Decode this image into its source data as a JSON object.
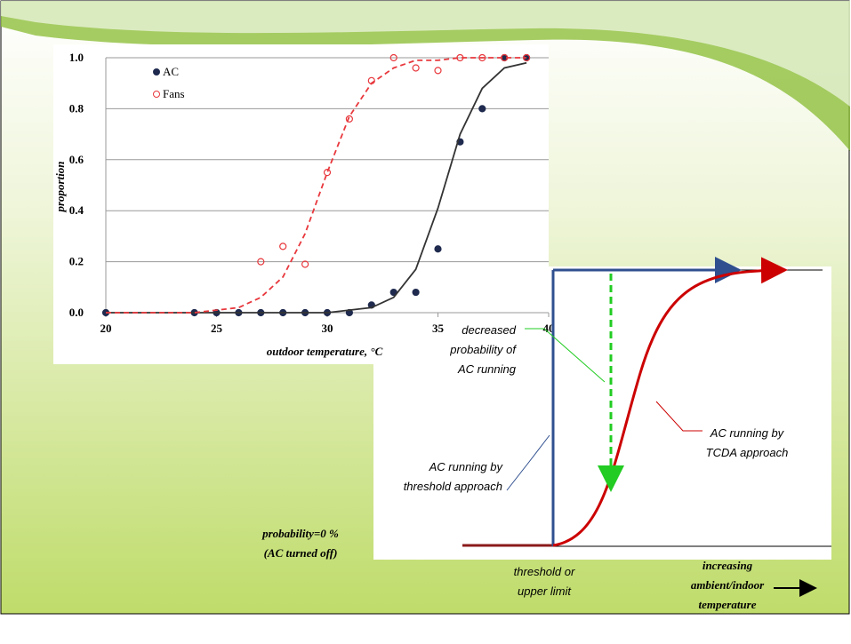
{
  "chart_data": {
    "type": "scatter",
    "xlabel": "outdoor temperature, °C",
    "ylabel": "proportion",
    "xlim": [
      20,
      40
    ],
    "ylim": [
      0,
      1.0
    ],
    "xticks": [
      20,
      25,
      30,
      35,
      40
    ],
    "yticks": [
      {
        "value": 0,
        "label": "0.0"
      },
      {
        "value": 0.2,
        "label": "0.2"
      },
      {
        "value": 0.4,
        "label": "0.4"
      },
      {
        "value": 0.6,
        "label": "0.6"
      },
      {
        "value": 0.8,
        "label": "0.8"
      },
      {
        "value": 1.0,
        "label": "1.0"
      }
    ],
    "grid": true,
    "legend": "upper left",
    "series": [
      {
        "name": "AC",
        "color": "#1f2a4e",
        "marker": "filled",
        "x": [
          20,
          24,
          25,
          26,
          27,
          28,
          29,
          30,
          31,
          32,
          33,
          34,
          35,
          36,
          37,
          38,
          39
        ],
        "values": [
          0,
          0,
          0,
          0,
          0,
          0,
          0,
          0,
          0,
          0.03,
          0.08,
          0.08,
          0.25,
          0.67,
          0.8,
          1.0,
          1.0
        ]
      },
      {
        "name": "Fans",
        "color": "#e8383d",
        "marker": "open",
        "x": [
          27,
          28,
          29,
          30,
          31,
          32,
          33,
          34,
          35,
          36,
          37,
          38,
          39
        ],
        "values": [
          0.2,
          0.26,
          0.19,
          0.55,
          0.76,
          0.91,
          1.0,
          0.96,
          0.95,
          1.0,
          1.0,
          1.0,
          1.0
        ]
      },
      {
        "color": "#333333",
        "line": "solid",
        "x": [
          20,
          21,
          22,
          23,
          24,
          25,
          26,
          27,
          28,
          29,
          30,
          31,
          32,
          33,
          34,
          35,
          36,
          37,
          38,
          39
        ],
        "values": [
          0,
          0,
          0,
          0,
          0,
          0,
          0,
          0,
          0,
          0,
          0,
          0.01,
          0.02,
          0.06,
          0.17,
          0.41,
          0.7,
          0.88,
          0.96,
          0.98
        ]
      },
      {
        "color": "#e8383d",
        "line": "dashed",
        "x": [
          20,
          21,
          22,
          23,
          24,
          25,
          26,
          27,
          28,
          29,
          30,
          31,
          32,
          33,
          34,
          35,
          36,
          37,
          38,
          39
        ],
        "values": [
          0,
          0,
          0,
          0,
          0,
          0.01,
          0.02,
          0.06,
          0.14,
          0.31,
          0.55,
          0.77,
          0.9,
          0.96,
          0.99,
          0.99,
          1.0,
          1.0,
          1.0,
          1.0
        ]
      }
    ]
  },
  "diagram": {
    "decreased": [
      "decreased",
      "probability of",
      "AC running"
    ],
    "threshold_approach": [
      "AC running by",
      "threshold approach"
    ],
    "tcda_approach": [
      "AC running by",
      "TCDA  approach"
    ],
    "off": [
      "probability=0 %",
      "(AC turned off)"
    ],
    "threshold_limit": [
      "threshold or",
      "upper limit"
    ],
    "increasing": [
      "increasing",
      "ambient/indoor",
      "temperature"
    ]
  }
}
